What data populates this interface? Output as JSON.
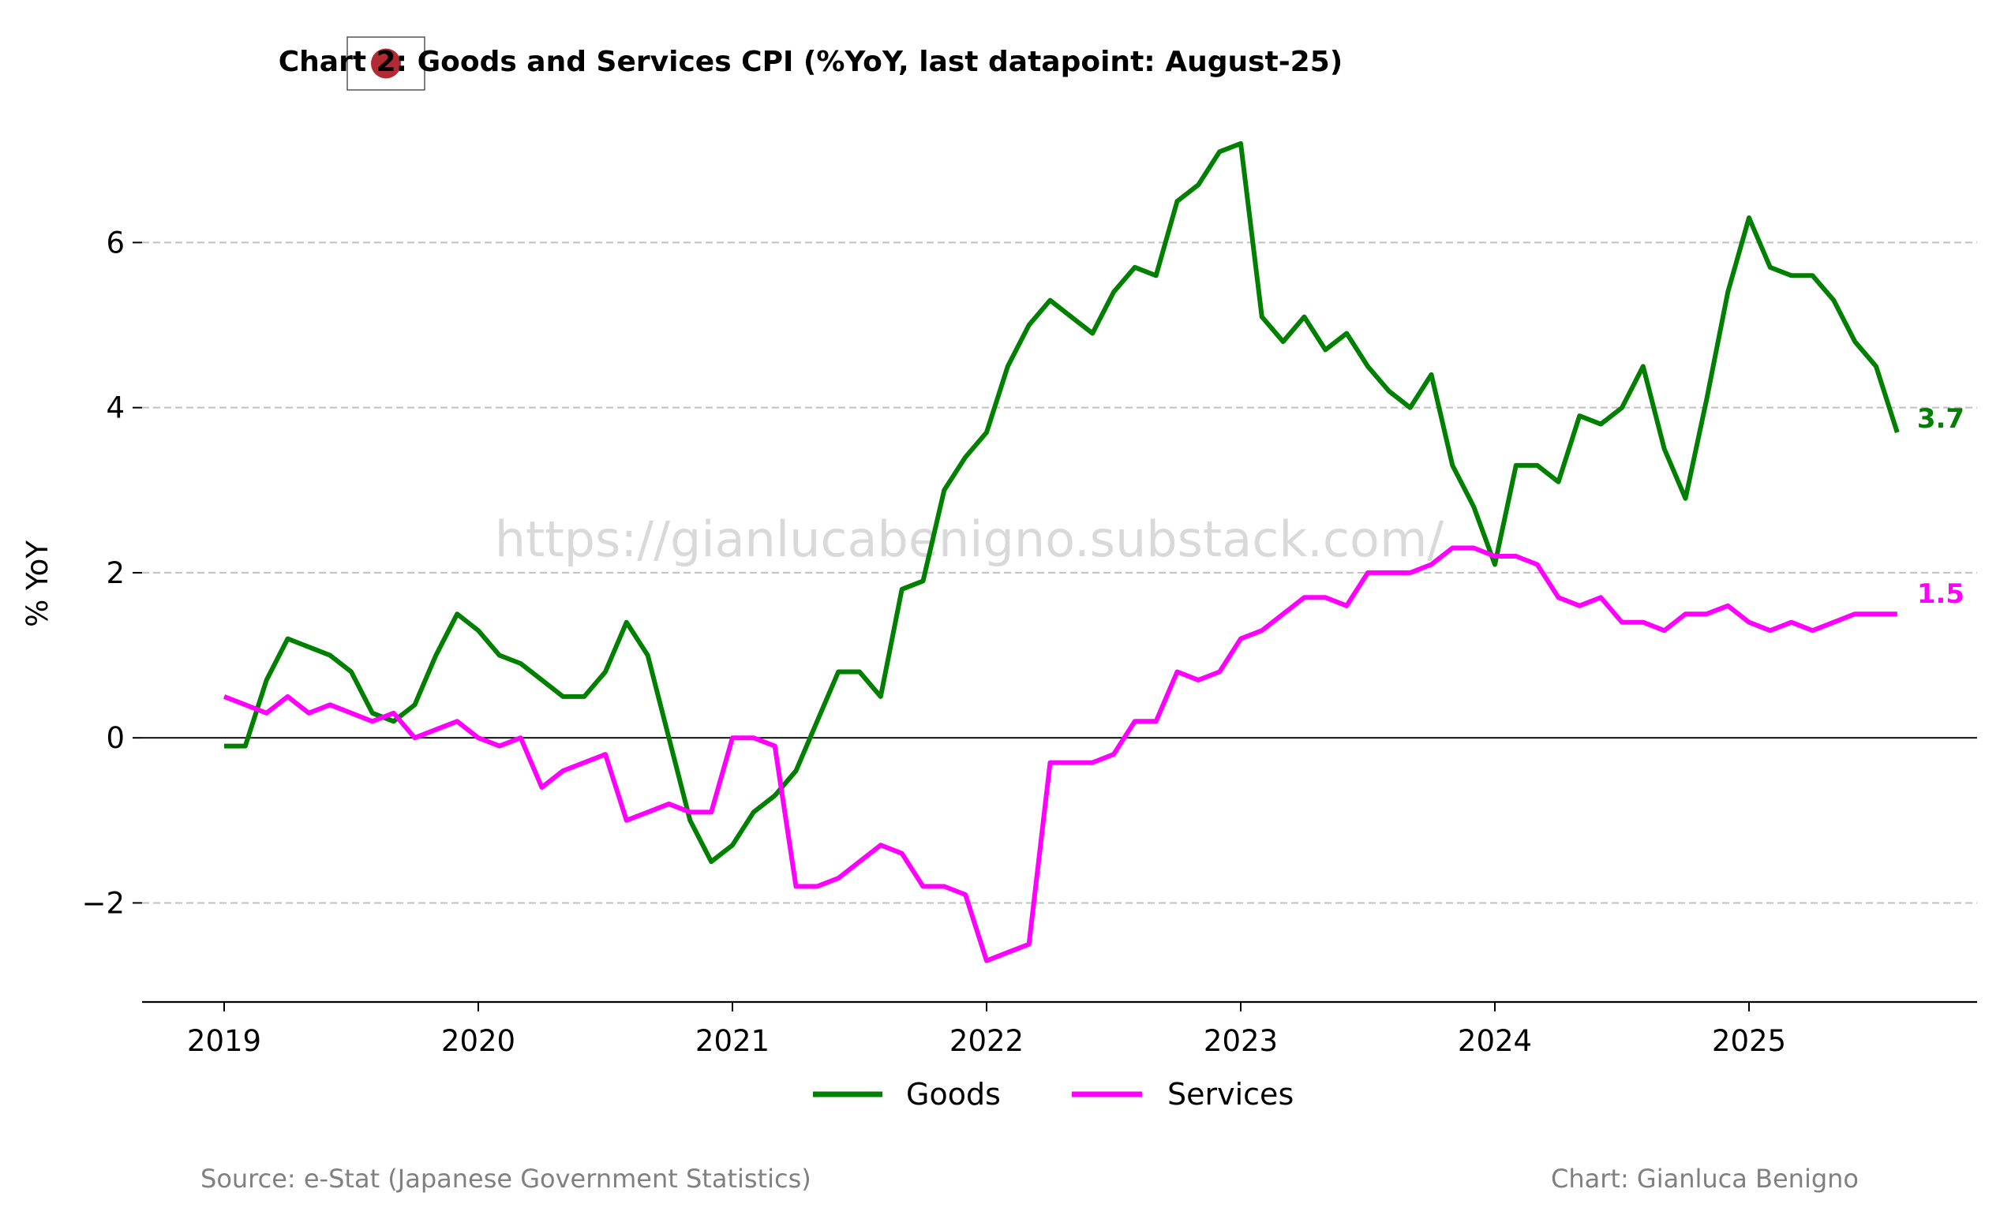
{
  "chart_data": {
    "type": "line",
    "title": "Chart 2: Goods and Services CPI (%YoY, last datapoint: August-25)",
    "ylabel": "% YoY",
    "xlabel": "",
    "ylim": [
      -3.2,
      7.6
    ],
    "y_ticks": [
      -2,
      0,
      2,
      4,
      6
    ],
    "y_tick_labels": [
      "−2",
      "0",
      "2",
      "4",
      "6"
    ],
    "x_start": "2019-01",
    "x_ticks": [
      2019,
      2020,
      2021,
      2022,
      2023,
      2024,
      2025
    ],
    "x_tick_labels": [
      "2019",
      "2020",
      "2021",
      "2022",
      "2023",
      "2024",
      "2025"
    ],
    "grid": "horizontal dashed",
    "zero_line": true,
    "legend_position": "bottom-center",
    "series": [
      {
        "name": "Goods",
        "color": "#008000",
        "end_label": "3.7",
        "values": [
          -0.1,
          -0.1,
          0.7,
          1.2,
          1.1,
          1.0,
          0.8,
          0.3,
          0.2,
          0.4,
          1.0,
          1.5,
          1.3,
          1.0,
          0.9,
          0.7,
          0.5,
          0.5,
          0.8,
          1.4,
          1.0,
          0.0,
          -1.0,
          -1.5,
          -1.3,
          -0.9,
          -0.7,
          -0.4,
          0.2,
          0.8,
          0.8,
          0.5,
          1.8,
          1.9,
          3.0,
          3.4,
          3.7,
          4.5,
          5.0,
          5.3,
          5.1,
          4.9,
          5.4,
          5.7,
          5.6,
          6.5,
          6.7,
          7.1,
          7.2,
          5.1,
          4.8,
          5.1,
          4.7,
          4.9,
          4.5,
          4.2,
          4.0,
          4.4,
          3.3,
          2.8,
          2.1,
          3.3,
          3.3,
          3.1,
          3.9,
          3.8,
          4.0,
          4.5,
          3.5,
          2.9,
          4.1,
          5.4,
          6.3,
          5.7,
          5.6,
          5.6,
          5.3,
          4.8,
          4.5,
          3.7
        ]
      },
      {
        "name": "Services",
        "color": "#ff00ff",
        "end_label": "1.5",
        "values": [
          0.5,
          0.4,
          0.3,
          0.5,
          0.3,
          0.4,
          0.3,
          0.2,
          0.3,
          0.0,
          0.1,
          0.2,
          0.0,
          -0.1,
          0.0,
          -0.6,
          -0.4,
          -0.3,
          -0.2,
          -1.0,
          -0.9,
          -0.8,
          -0.9,
          -0.9,
          0.0,
          0.0,
          -0.1,
          -1.8,
          -1.8,
          -1.7,
          -1.5,
          -1.3,
          -1.4,
          -1.8,
          -1.8,
          -1.9,
          -2.7,
          -2.6,
          -2.5,
          -0.3,
          -0.3,
          -0.3,
          -0.2,
          0.2,
          0.2,
          0.8,
          0.7,
          0.8,
          1.2,
          1.3,
          1.5,
          1.7,
          1.7,
          1.6,
          2.0,
          2.0,
          2.0,
          2.1,
          2.3,
          2.3,
          2.2,
          2.2,
          2.1,
          1.7,
          1.6,
          1.7,
          1.4,
          1.4,
          1.3,
          1.5,
          1.5,
          1.6,
          1.4,
          1.3,
          1.4,
          1.3,
          1.4,
          1.5,
          1.5,
          1.5
        ]
      }
    ]
  },
  "watermark": "https://gianlucabenigno.substack.com/",
  "footer": {
    "source": "Source: e-Stat (Japanese Government Statistics)",
    "credit": "Chart: Gianluca Benigno"
  },
  "flag": {
    "icon": "japan-flag-icon",
    "disc_color": "#b22a33"
  }
}
